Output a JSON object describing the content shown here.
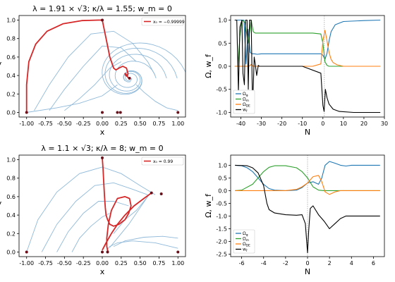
{
  "chart_data": [
    {
      "type": "line",
      "subtype": "phase-portrait",
      "title": "λ = 1.91 × √3; κ/λ = 1.55; w_m = 0",
      "xlabel": "x",
      "ylabel": "y",
      "xlim": [
        -1.1,
        1.1
      ],
      "ylim": [
        -0.05,
        1.05
      ],
      "xticks": [
        "-1.00",
        "-0.75",
        "-0.50",
        "-0.25",
        "0.00",
        "0.25",
        "0.50",
        "0.75",
        "1.00"
      ],
      "yticks": [
        "0.0",
        "0.2",
        "0.4",
        "0.6",
        "0.8",
        "1.0"
      ],
      "legend": [
        "x₀ = −0.99999"
      ],
      "legend_position": "top-right",
      "colors": {
        "trajectory": "#d62728",
        "streamlines": "#8fb9d9",
        "points": "#6b0f1a"
      },
      "series": [
        {
          "name": "x₀ = −0.99999",
          "x": [
            -1.0,
            -1.0,
            -0.97,
            -0.88,
            -0.73,
            -0.52,
            -0.27,
            -0.05,
            0.0,
            0.05,
            0.1,
            0.15,
            0.18,
            0.22,
            0.27,
            0.32,
            0.34,
            0.33,
            0.31,
            0.3,
            0.31,
            0.33,
            0.35
          ],
          "y": [
            0.0,
            0.3,
            0.55,
            0.74,
            0.88,
            0.96,
            0.995,
            1.0,
            1.0,
            0.8,
            0.6,
            0.48,
            0.46,
            0.48,
            0.5,
            0.48,
            0.42,
            0.39,
            0.4,
            0.42,
            0.42,
            0.39,
            0.37
          ]
        }
      ],
      "points": [
        {
          "x": -1.0,
          "y": 0.0
        },
        {
          "x": 0.0,
          "y": 0.0
        },
        {
          "x": 1.0,
          "y": 0.0
        },
        {
          "x": 0.0,
          "y": 1.0
        },
        {
          "x": 0.2,
          "y": 0.0
        },
        {
          "x": 0.24,
          "y": 0.0
        },
        {
          "x": 0.36,
          "y": 0.37
        }
      ],
      "streamlines_described": "flow lines spiraling toward the focus near (0.36, 0.37)"
    },
    {
      "type": "line",
      "title": "",
      "xlabel": "N",
      "ylabel": "Ω, w_f",
      "xlim": [
        -45,
        30
      ],
      "ylim": [
        -1.1,
        1.1
      ],
      "xticks": [
        "-40",
        "-30",
        "-20",
        "-10",
        "0",
        "10",
        "20",
        "30"
      ],
      "yticks": [
        "-1.0",
        "-0.5",
        "0.0",
        "0.5",
        "1.0"
      ],
      "legend": [
        "Ω_φ",
        "Ω_m",
        "Ω_DE",
        "w_f"
      ],
      "legend_position": "lower-left",
      "vline": 0.7,
      "series": [
        {
          "name": "Ω_φ",
          "color": "#1f77b4",
          "x": [
            -43,
            -38.5,
            -37.5,
            -36.5,
            -35.5,
            -34.5,
            -33.5,
            -32,
            -30,
            -25,
            -15,
            -5,
            -1,
            0,
            1,
            2,
            3,
            4,
            6,
            10,
            20,
            28
          ],
          "y": [
            1.0,
            1.0,
            0.05,
            0.8,
            0.3,
            0.27,
            0.27,
            0.26,
            0.27,
            0.27,
            0.27,
            0.27,
            0.27,
            0.24,
            0.15,
            0.28,
            0.55,
            0.75,
            0.9,
            0.97,
            0.99,
            1.0
          ]
        },
        {
          "name": "Ω_m",
          "color": "#2ca02c",
          "x": [
            -43,
            -41.5,
            -40.5,
            -39.5,
            -38,
            -36.5,
            -35,
            -34,
            -33,
            -32,
            -30,
            -20,
            -5,
            -1,
            0,
            1,
            2,
            3,
            5,
            10,
            28
          ],
          "y": [
            0.0,
            0.0,
            0.65,
            1.0,
            0.95,
            0.5,
            1.0,
            0.75,
            0.72,
            0.72,
            0.72,
            0.72,
            0.72,
            0.7,
            0.5,
            0.1,
            0.02,
            0.0,
            0.0,
            0.0,
            0.0
          ]
        },
        {
          "name": "Ω_DE",
          "color": "#ff7f0e",
          "x": [
            -43,
            -36,
            -35,
            -34,
            -32,
            -20,
            -5,
            -1,
            0,
            1,
            2,
            3,
            4,
            5,
            7,
            10,
            28
          ],
          "y": [
            0.0,
            0.0,
            0.04,
            0.0,
            0.0,
            0.0,
            0.0,
            0.05,
            0.55,
            0.78,
            0.55,
            0.3,
            0.15,
            0.08,
            0.03,
            0.0,
            0.0
          ]
        },
        {
          "name": "w_f",
          "color": "#000000",
          "x": [
            -43,
            -42,
            -41.2,
            -40.5,
            -39.5,
            -39,
            -38.3,
            -37.7,
            -37,
            -36.4,
            -35.8,
            -35,
            -34.3,
            -33.5,
            -33,
            -32.3,
            -31.5,
            -31,
            -30,
            -25,
            -10,
            -1,
            0,
            0.6,
            1.2,
            2,
            3,
            5,
            8,
            15,
            28
          ],
          "y": [
            1.0,
            1.0,
            -0.55,
            0.85,
            1.0,
            -0.15,
            -0.4,
            1.0,
            1.0,
            -0.5,
            1.0,
            1.0,
            -0.95,
            0.2,
            0.05,
            -0.2,
            0.02,
            0.0,
            0.0,
            0.0,
            0.0,
            -0.15,
            -0.85,
            -0.98,
            -0.5,
            -0.68,
            -0.82,
            -0.93,
            -0.98,
            -1.0,
            -1.0
          ]
        }
      ]
    },
    {
      "type": "line",
      "subtype": "phase-portrait",
      "title": "λ = 1.1 × √3; κ/λ = 8; w_m = 0",
      "xlabel": "x",
      "ylabel": "y",
      "xlim": [
        -1.1,
        1.1
      ],
      "ylim": [
        -0.05,
        1.05
      ],
      "xticks": [
        "-1.00",
        "-0.75",
        "-0.50",
        "-0.25",
        "0.00",
        "0.25",
        "0.50",
        "0.75",
        "1.00"
      ],
      "yticks": [
        "0.0",
        "0.2",
        "0.4",
        "0.6",
        "0.8",
        "1.0"
      ],
      "legend": [
        "x₀ = 0.99"
      ],
      "legend_position": "top-right",
      "colors": {
        "trajectory": "#d62728",
        "streamlines": "#8fb9d9",
        "points": "#6b0f1a"
      },
      "series": [
        {
          "name": "x₀ = 0.99",
          "x": [
            0.0,
            0.01,
            0.02,
            0.03,
            0.04,
            0.05,
            0.07,
            0.1,
            0.15,
            0.22,
            0.3,
            0.35,
            0.38,
            0.36,
            0.3,
            0.2,
            0.12,
            0.08,
            0.06,
            0.06,
            0.07,
            0.08
          ],
          "y": [
            1.02,
            0.9,
            0.75,
            0.6,
            0.48,
            0.4,
            0.35,
            0.3,
            0.28,
            0.3,
            0.35,
            0.42,
            0.5,
            0.58,
            0.6,
            0.58,
            0.45,
            0.3,
            0.15,
            0.06,
            0.02,
            0.0
          ]
        },
        {
          "name": "",
          "x": [
            0.0,
            0.05,
            0.12,
            0.2,
            0.3,
            0.42,
            0.55,
            0.65
          ],
          "y": [
            0.02,
            0.1,
            0.2,
            0.3,
            0.4,
            0.5,
            0.58,
            0.64
          ]
        }
      ],
      "points": [
        {
          "x": -1.0,
          "y": 0.0
        },
        {
          "x": 0.0,
          "y": 0.0
        },
        {
          "x": 1.0,
          "y": 0.0
        },
        {
          "x": 0.0,
          "y": 1.02
        },
        {
          "x": 0.07,
          "y": 0.0
        },
        {
          "x": 0.78,
          "y": 0.63
        },
        {
          "x": 0.65,
          "y": 0.64
        }
      ]
    },
    {
      "type": "line",
      "title": "",
      "xlabel": "N",
      "ylabel": "Ω, w_f",
      "xlim": [
        -7,
        7
      ],
      "ylim": [
        -2.6,
        1.4
      ],
      "xticks": [
        "-6",
        "-4",
        "-2",
        "0",
        "2",
        "4",
        "6"
      ],
      "yticks": [
        "-2.5",
        "-2.0",
        "-1.5",
        "-1.0",
        "-0.5",
        "0.0",
        "0.5",
        "1.0"
      ],
      "legend": [
        "Ω_φ",
        "Ω_m",
        "Ω_DE",
        "w_f"
      ],
      "legend_position": "lower-left",
      "vline": 0.0,
      "series": [
        {
          "name": "Ω_φ",
          "color": "#1f77b4",
          "x": [
            -6.6,
            -6.0,
            -5.5,
            -5.0,
            -4.5,
            -4.0,
            -3.5,
            -3.0,
            -2.0,
            -1.0,
            -0.5,
            0.0,
            0.5,
            1.0,
            1.3,
            1.6,
            2.0,
            2.5,
            3.0,
            3.5,
            4.0,
            5.0,
            6.6
          ],
          "y": [
            1.0,
            0.98,
            0.9,
            0.75,
            0.5,
            0.25,
            0.08,
            0.02,
            0.0,
            0.02,
            0.12,
            0.3,
            0.35,
            0.25,
            0.5,
            1.0,
            1.15,
            1.08,
            1.0,
            0.97,
            1.0,
            1.0,
            1.0
          ]
        },
        {
          "name": "Ω_m",
          "color": "#2ca02c",
          "x": [
            -6.6,
            -6.0,
            -5.0,
            -4.5,
            -4.0,
            -3.5,
            -3.0,
            -2.0,
            -1.0,
            -0.5,
            0.0,
            0.5,
            1.0,
            1.5,
            2.0,
            3.0,
            6.6
          ],
          "y": [
            0.0,
            0.02,
            0.25,
            0.5,
            0.75,
            0.92,
            0.98,
            0.98,
            0.9,
            0.75,
            0.5,
            0.15,
            0.02,
            0.0,
            0.0,
            0.0,
            0.0
          ]
        },
        {
          "name": "Ω_DE",
          "color": "#ff7f0e",
          "x": [
            -6.6,
            -2.0,
            -1.0,
            -0.5,
            0.0,
            0.5,
            1.0,
            1.3,
            1.6,
            2.0,
            2.5,
            3.0,
            4.0,
            6.6
          ],
          "y": [
            0.0,
            0.0,
            0.05,
            0.15,
            0.3,
            0.55,
            0.6,
            0.35,
            -0.05,
            -0.15,
            -0.05,
            0.0,
            0.0,
            0.0
          ]
        },
        {
          "name": "w_f",
          "color": "#000000",
          "x": [
            -6.6,
            -5.5,
            -5.0,
            -4.5,
            -4.0,
            -3.7,
            -3.5,
            -3.0,
            -2.0,
            -1.0,
            -0.5,
            -0.2,
            0.0,
            0.1,
            0.25,
            0.5,
            1.0,
            1.5,
            2.0,
            2.5,
            3.0,
            3.5,
            4.0,
            6.6
          ],
          "y": [
            1.0,
            0.98,
            0.9,
            0.7,
            0.2,
            -0.5,
            -0.75,
            -0.88,
            -0.95,
            -0.97,
            -0.95,
            -1.3,
            -2.45,
            -1.6,
            -0.7,
            -0.6,
            -0.95,
            -1.2,
            -1.5,
            -1.3,
            -1.1,
            -1.0,
            -1.0,
            -1.0
          ]
        }
      ]
    }
  ]
}
